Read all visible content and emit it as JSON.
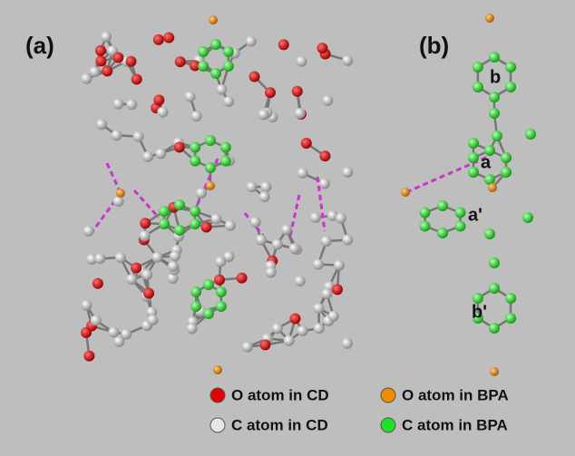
{
  "panels": [
    {
      "label": "(a)"
    },
    {
      "label": "(b)",
      "fragment_labels": [
        "b",
        "a",
        "a'",
        "b'"
      ]
    }
  ],
  "legend": [
    {
      "label": "O atom in CD",
      "color": "#e00000"
    },
    {
      "label": "O atom in BPA",
      "color": "#f08c00"
    },
    {
      "label": "C atom in CD",
      "color": "#e8e8e8"
    },
    {
      "label": "C atom in BPA",
      "color": "#22e022"
    }
  ]
}
